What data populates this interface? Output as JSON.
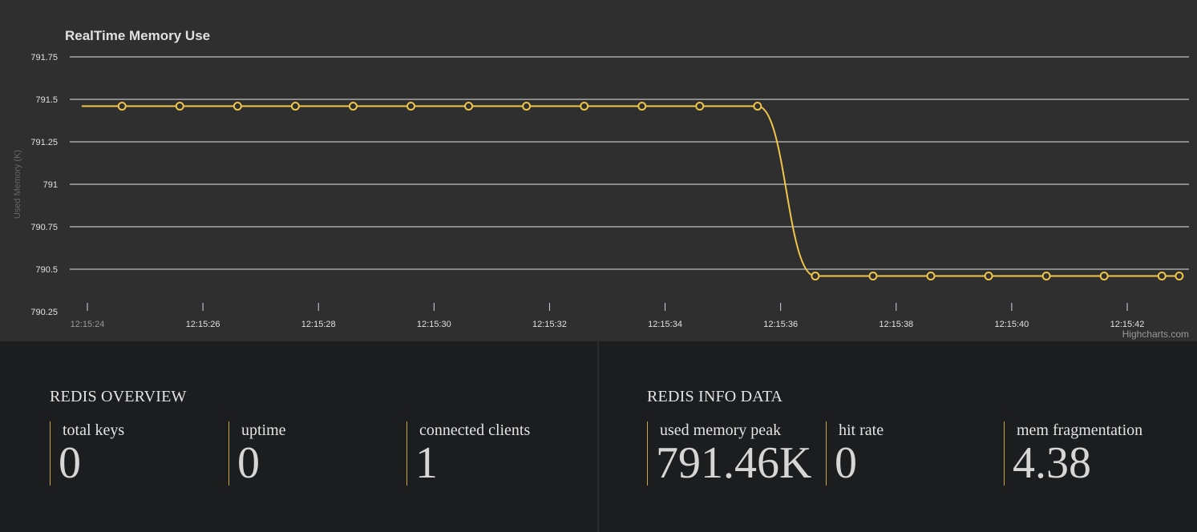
{
  "chart_data": {
    "type": "line",
    "title": "RealTime Memory Use",
    "ylabel": "Used Memory (K)",
    "ylim": [
      790.25,
      791.75
    ],
    "yticks": [
      "791.75",
      "791.5",
      "791.25",
      "791",
      "790.75",
      "790.5",
      "790.25"
    ],
    "xlim_seconds_after_12_15_24": [
      -0.3,
      19.05
    ],
    "xtick_labels": [
      "12:15:24",
      "12:15:26",
      "12:15:28",
      "12:15:30",
      "12:15:32",
      "12:15:34",
      "12:15:36",
      "12:15:38",
      "12:15:40",
      "12:15:42"
    ],
    "credits": "Highcharts.com",
    "line_color": "#f0c54a",
    "series": [
      {
        "x": [
          "12:15:23.9",
          "12:15:24.6",
          "12:15:25.6",
          "12:15:26.6",
          "12:15:27.6",
          "12:15:28.6",
          "12:15:29.6",
          "12:15:30.6",
          "12:15:31.6",
          "12:15:32.6",
          "12:15:33.6",
          "12:15:34.6",
          "12:15:35.6",
          "12:15:36.6",
          "12:15:37.6",
          "12:15:38.6",
          "12:15:39.6",
          "12:15:40.6",
          "12:15:41.6",
          "12:15:42.6",
          "12:15:42.9"
        ],
        "values": [
          791.46,
          791.46,
          791.46,
          791.46,
          791.46,
          791.46,
          791.46,
          791.46,
          791.46,
          791.46,
          791.46,
          791.46,
          791.46,
          790.46,
          790.46,
          790.46,
          790.46,
          790.46,
          790.46,
          790.46,
          790.46
        ],
        "marker": [
          false,
          true,
          true,
          true,
          true,
          true,
          true,
          true,
          true,
          true,
          true,
          true,
          true,
          true,
          true,
          true,
          true,
          true,
          true,
          true,
          true
        ]
      }
    ]
  },
  "overview": {
    "title": "REDIS OVERVIEW",
    "stats": [
      {
        "label": "total keys",
        "value": "0"
      },
      {
        "label": "uptime",
        "value": "0"
      },
      {
        "label": "connected clients",
        "value": "1"
      }
    ]
  },
  "info": {
    "title": "REDIS INFO DATA",
    "stats": [
      {
        "label": "used memory peak",
        "value": "791.46K"
      },
      {
        "label": "hit rate",
        "value": "0"
      },
      {
        "label": "mem fragmentation",
        "value": "4.38"
      }
    ]
  }
}
